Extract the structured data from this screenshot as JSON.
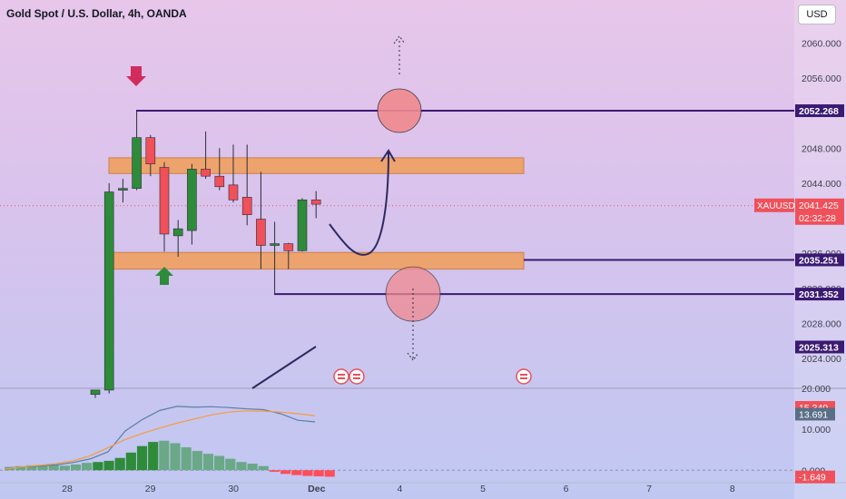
{
  "header": {
    "title": "Gold Spot / U.S. Dollar, 4h, OANDA",
    "currency_button": "USD"
  },
  "colors": {
    "up": "#2e8b3a",
    "down": "#f0505a",
    "level_line": "#3b1a73",
    "zone": "#f0a060",
    "circle": "#f08a90",
    "macd_line": "#5b7fa6",
    "signal_line": "#f59c3c",
    "hist_up_strong": "#2e8b3a",
    "hist_up_weak": "#6aa888",
    "hist_down": "#ff4d5a",
    "price_tag": "#f0505a"
  },
  "chart_data": [
    {
      "type": "candlestick",
      "title": "Gold Spot / U.S. Dollar, 4h, OANDA",
      "x_tick_labels": [
        "28",
        "29",
        "30",
        "Dec",
        "4",
        "5",
        "6",
        "7",
        "8"
      ],
      "y_ticks": [
        2024.0,
        2028.0,
        2032.0,
        2036.0,
        2044.0,
        2048.0,
        2056.0,
        2060.0
      ],
      "ylim": [
        2020.6,
        2062.0
      ],
      "candles": [
        {
          "o": 2019.9,
          "h": 2020.4,
          "l": 2019.5,
          "c": 2020.4
        },
        {
          "o": 2020.4,
          "h": 2044.0,
          "l": 2020.0,
          "c": 2043.0
        },
        {
          "o": 2043.2,
          "h": 2044.5,
          "l": 2041.8,
          "c": 2043.4
        },
        {
          "o": 2043.4,
          "h": 2052.3,
          "l": 2043.2,
          "c": 2049.2
        },
        {
          "o": 2049.2,
          "h": 2049.5,
          "l": 2044.8,
          "c": 2046.2
        },
        {
          "o": 2045.8,
          "h": 2046.4,
          "l": 2036.2,
          "c": 2038.2
        },
        {
          "o": 2038.0,
          "h": 2039.8,
          "l": 2035.6,
          "c": 2038.8
        },
        {
          "o": 2038.6,
          "h": 2046.2,
          "l": 2037.0,
          "c": 2045.6
        },
        {
          "o": 2045.6,
          "h": 2049.9,
          "l": 2044.5,
          "c": 2044.8
        },
        {
          "o": 2044.8,
          "h": 2048.0,
          "l": 2043.2,
          "c": 2043.6
        },
        {
          "o": 2043.8,
          "h": 2048.4,
          "l": 2041.8,
          "c": 2042.1
        },
        {
          "o": 2042.4,
          "h": 2048.4,
          "l": 2039.2,
          "c": 2040.4
        },
        {
          "o": 2039.9,
          "h": 2045.3,
          "l": 2034.2,
          "c": 2036.9
        },
        {
          "o": 2036.9,
          "h": 2039.6,
          "l": 2031.4,
          "c": 2037.1
        },
        {
          "o": 2037.1,
          "h": 2037.2,
          "l": 2034.2,
          "c": 2036.3
        },
        {
          "o": 2036.3,
          "h": 2042.3,
          "l": 2036.2,
          "c": 2042.1
        },
        {
          "o": 2042.1,
          "h": 2043.1,
          "l": 2040.0,
          "c": 2041.6
        }
      ],
      "horizontal_levels": [
        2052.268,
        2035.251,
        2031.352
      ],
      "zones": [
        [
          2045.1,
          2046.9
        ],
        [
          2034.2,
          2036.1
        ]
      ],
      "price_axis_tags": [
        {
          "label": "2052.268",
          "value": 2052.268
        },
        {
          "label": "2035.251",
          "value": 2035.251
        },
        {
          "label": "2031.352",
          "value": 2031.352
        },
        {
          "label": "2025.313",
          "value": 2025.313
        }
      ],
      "current_price": {
        "symbol": "XAUUSD",
        "price": "2041.425",
        "countdown": "02:32:28",
        "value": 2041.425
      }
    },
    {
      "type": "histogram",
      "indicator": "MACD",
      "y_ticks": [
        20.0,
        10.0,
        0.0
      ],
      "ylim": [
        -2.6,
        20.0
      ],
      "histogram": [
        0.8,
        1.0,
        1.2,
        1.0,
        1.3,
        1.1,
        1.4,
        1.8,
        2.0,
        2.3,
        3.0,
        4.3,
        5.9,
        6.9,
        7.2,
        6.6,
        5.6,
        4.7,
        4.0,
        3.5,
        2.8,
        2.0,
        1.6,
        1.0,
        -0.4,
        -0.9,
        -1.2,
        -1.4,
        -1.5,
        -1.6
      ],
      "macd_line": [
        0.4,
        0.8,
        1.0,
        1.3,
        1.9,
        2.8,
        4.5,
        9.6,
        12.4,
        14.6,
        15.6,
        15.4,
        15.5,
        15.3,
        15.0,
        14.8,
        13.8,
        12.2,
        11.8
      ],
      "signal_line": [
        0.3,
        0.8,
        1.2,
        1.6,
        2.3,
        3.6,
        5.5,
        7.5,
        9.0,
        10.3,
        11.5,
        12.5,
        13.5,
        14.2,
        14.5,
        14.4,
        14.2,
        13.8,
        13.3
      ],
      "value_tags": [
        {
          "label": "15.340",
          "value": 15.34
        },
        {
          "label": "13.691",
          "value": 13.691
        },
        {
          "label": "-1.649",
          "value": -1.649
        }
      ]
    }
  ]
}
